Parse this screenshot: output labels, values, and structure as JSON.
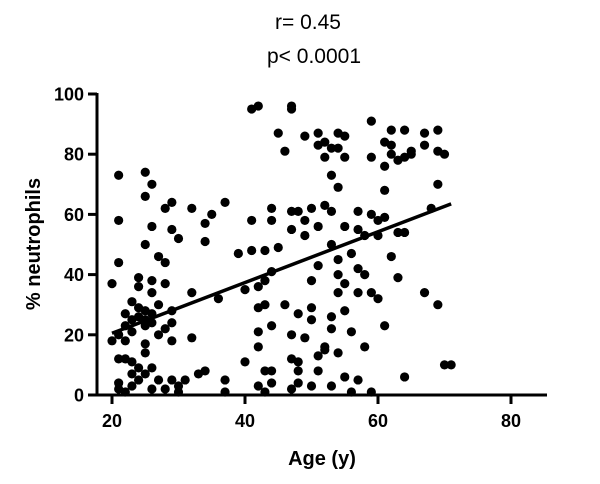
{
  "chart_data": {
    "type": "scatter",
    "annotations": {
      "r_text": "r= 0.45",
      "p_text": "p< 0.0001"
    },
    "xlabel": "Age (y)",
    "ylabel": "% neutrophils",
    "xlim": [
      15,
      85
    ],
    "ylim": [
      0,
      100
    ],
    "xticks": [
      20,
      40,
      60,
      80
    ],
    "yticks": [
      0,
      20,
      40,
      60,
      80,
      100
    ],
    "grid": false,
    "regression_line": {
      "x": [
        20,
        71
      ],
      "y": [
        20.5,
        63.5
      ]
    },
    "points": [
      [
        20,
        37
      ],
      [
        20,
        18
      ],
      [
        21,
        20
      ],
      [
        21,
        12
      ],
      [
        21,
        4
      ],
      [
        21,
        2
      ],
      [
        21,
        73
      ],
      [
        21,
        58
      ],
      [
        21,
        44
      ],
      [
        22,
        27
      ],
      [
        22,
        23
      ],
      [
        22,
        18
      ],
      [
        22,
        12
      ],
      [
        22,
        1
      ],
      [
        23,
        31
      ],
      [
        23,
        25
      ],
      [
        23,
        21
      ],
      [
        23,
        11
      ],
      [
        23,
        7
      ],
      [
        23,
        3
      ],
      [
        24,
        29
      ],
      [
        24,
        26
      ],
      [
        24,
        9
      ],
      [
        24,
        5
      ],
      [
        24,
        39
      ],
      [
        24,
        36
      ],
      [
        25,
        28
      ],
      [
        25,
        25
      ],
      [
        25,
        23
      ],
      [
        25,
        17
      ],
      [
        25,
        14
      ],
      [
        25,
        7
      ],
      [
        25,
        50
      ],
      [
        25,
        66
      ],
      [
        25,
        74
      ],
      [
        26,
        70
      ],
      [
        26,
        56
      ],
      [
        26,
        27
      ],
      [
        26,
        24
      ],
      [
        26,
        38
      ],
      [
        26,
        34
      ],
      [
        26,
        9
      ],
      [
        26,
        2
      ],
      [
        27,
        46
      ],
      [
        27,
        30
      ],
      [
        27,
        20
      ],
      [
        27,
        5
      ],
      [
        28,
        62
      ],
      [
        28,
        44
      ],
      [
        28,
        37
      ],
      [
        28,
        22
      ],
      [
        28,
        2
      ],
      [
        29,
        64
      ],
      [
        29,
        55
      ],
      [
        29,
        28
      ],
      [
        29,
        24
      ],
      [
        29,
        18
      ],
      [
        29,
        5
      ],
      [
        30,
        52
      ],
      [
        30,
        3
      ],
      [
        30,
        1
      ],
      [
        31,
        5
      ],
      [
        32,
        62
      ],
      [
        32,
        34
      ],
      [
        32,
        19
      ],
      [
        33,
        7
      ],
      [
        34,
        57
      ],
      [
        34,
        51
      ],
      [
        34,
        8
      ],
      [
        35,
        60
      ],
      [
        36,
        32
      ],
      [
        37,
        64
      ],
      [
        37,
        5
      ],
      [
        37,
        1
      ],
      [
        39,
        47
      ],
      [
        40,
        35
      ],
      [
        40,
        11
      ],
      [
        41,
        95
      ],
      [
        41,
        58
      ],
      [
        41,
        48
      ],
      [
        42,
        96
      ],
      [
        42,
        36
      ],
      [
        42,
        29
      ],
      [
        42,
        21
      ],
      [
        42,
        16
      ],
      [
        42,
        3
      ],
      [
        43,
        48
      ],
      [
        43,
        38
      ],
      [
        43,
        30
      ],
      [
        43,
        8
      ],
      [
        43,
        1
      ],
      [
        44,
        62
      ],
      [
        44,
        58
      ],
      [
        44,
        41
      ],
      [
        44,
        23
      ],
      [
        44,
        8
      ],
      [
        44,
        4
      ],
      [
        45,
        87
      ],
      [
        45,
        49
      ],
      [
        46,
        81
      ],
      [
        46,
        30
      ],
      [
        47,
        96
      ],
      [
        47,
        95
      ],
      [
        47,
        61
      ],
      [
        47,
        55
      ],
      [
        47,
        20
      ],
      [
        47,
        12
      ],
      [
        47,
        2
      ],
      [
        48,
        61
      ],
      [
        48,
        27
      ],
      [
        48,
        11
      ],
      [
        48,
        8
      ],
      [
        48,
        4
      ],
      [
        49,
        86
      ],
      [
        49,
        58
      ],
      [
        49,
        53
      ],
      [
        49,
        19
      ],
      [
        50,
        62
      ],
      [
        50,
        38
      ],
      [
        50,
        29
      ],
      [
        50,
        25
      ],
      [
        50,
        3
      ],
      [
        51,
        87
      ],
      [
        51,
        83
      ],
      [
        51,
        56
      ],
      [
        51,
        43
      ],
      [
        51,
        13
      ],
      [
        51,
        8
      ],
      [
        52,
        84
      ],
      [
        52,
        79
      ],
      [
        52,
        63
      ],
      [
        52,
        15
      ],
      [
        52,
        16
      ],
      [
        53,
        82
      ],
      [
        53,
        73
      ],
      [
        53,
        61
      ],
      [
        53,
        50
      ],
      [
        53,
        26
      ],
      [
        53,
        22
      ],
      [
        53,
        3
      ],
      [
        54,
        87
      ],
      [
        54,
        82
      ],
      [
        54,
        69
      ],
      [
        54,
        45
      ],
      [
        54,
        40
      ],
      [
        54,
        34
      ],
      [
        54,
        14
      ],
      [
        55,
        86
      ],
      [
        55,
        79
      ],
      [
        55,
        56
      ],
      [
        55,
        37
      ],
      [
        55,
        28
      ],
      [
        55,
        6
      ],
      [
        56,
        47
      ],
      [
        56,
        21
      ],
      [
        56,
        1
      ],
      [
        57,
        61
      ],
      [
        57,
        55
      ],
      [
        57,
        42
      ],
      [
        57,
        34
      ],
      [
        57,
        5
      ],
      [
        58,
        53
      ],
      [
        58,
        40
      ],
      [
        58,
        16
      ],
      [
        59,
        91
      ],
      [
        59,
        79
      ],
      [
        59,
        60
      ],
      [
        59,
        34
      ],
      [
        59,
        1
      ],
      [
        60,
        58
      ],
      [
        60,
        53
      ],
      [
        60,
        32
      ],
      [
        61,
        84
      ],
      [
        61,
        76
      ],
      [
        61,
        68
      ],
      [
        61,
        59
      ],
      [
        61,
        23
      ],
      [
        62,
        88
      ],
      [
        62,
        83
      ],
      [
        62,
        80
      ],
      [
        62,
        46
      ],
      [
        63,
        78
      ],
      [
        63,
        54
      ],
      [
        63,
        39
      ],
      [
        64,
        88
      ],
      [
        64,
        79
      ],
      [
        64,
        54
      ],
      [
        64,
        6
      ],
      [
        65,
        80
      ],
      [
        65,
        81
      ],
      [
        67,
        87
      ],
      [
        67,
        83
      ],
      [
        67,
        34
      ],
      [
        68,
        62
      ],
      [
        69,
        88
      ],
      [
        69,
        81
      ],
      [
        69,
        70
      ],
      [
        69,
        30
      ],
      [
        70,
        80
      ],
      [
        70,
        10
      ],
      [
        71,
        10
      ]
    ]
  }
}
